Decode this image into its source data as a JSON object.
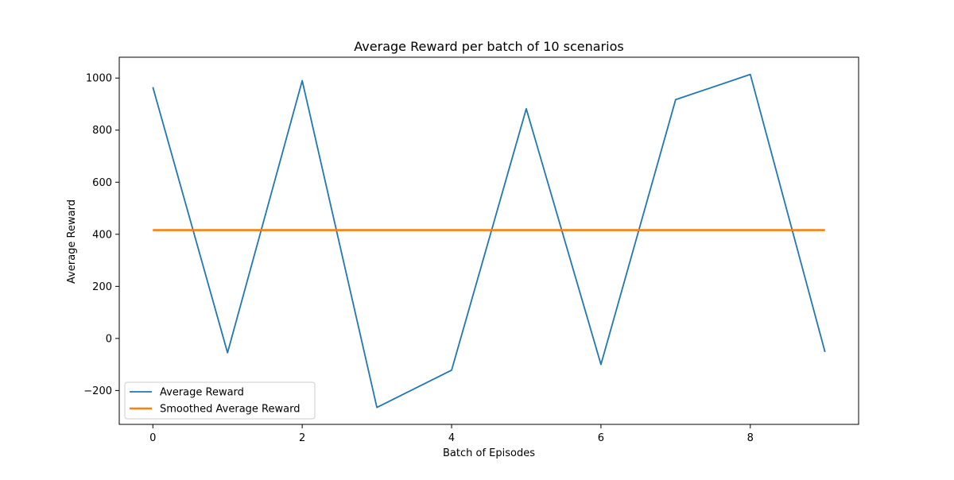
{
  "chart_data": {
    "type": "line",
    "title": "Average Reward per batch of 10 scenarios",
    "xlabel": "Batch of Episodes",
    "ylabel": "Average Reward",
    "xlim": [
      -0.45,
      9.45
    ],
    "ylim": [
      -330,
      1080
    ],
    "xticks": [
      0,
      2,
      4,
      6,
      8
    ],
    "xtick_labels": [
      "0",
      "2",
      "4",
      "6",
      "8"
    ],
    "yticks": [
      -200,
      0,
      200,
      400,
      600,
      800,
      1000
    ],
    "ytick_labels": [
      "−200",
      "0",
      "200",
      "400",
      "600",
      "800",
      "1000"
    ],
    "grid": false,
    "legend_position": "lower-left",
    "x": [
      0,
      1,
      2,
      3,
      4,
      5,
      6,
      7,
      8,
      9
    ],
    "series": [
      {
        "name": "Average Reward",
        "color": "#1f77b4",
        "values": [
          965,
          -55,
          990,
          -265,
          -122,
          882,
          -100,
          917,
          1014,
          -52
        ]
      },
      {
        "name": "Smoothed Average Reward",
        "color": "#ff7f0e",
        "values": [
          416,
          416,
          416,
          416,
          416,
          416,
          416,
          416,
          416,
          416
        ]
      }
    ]
  }
}
